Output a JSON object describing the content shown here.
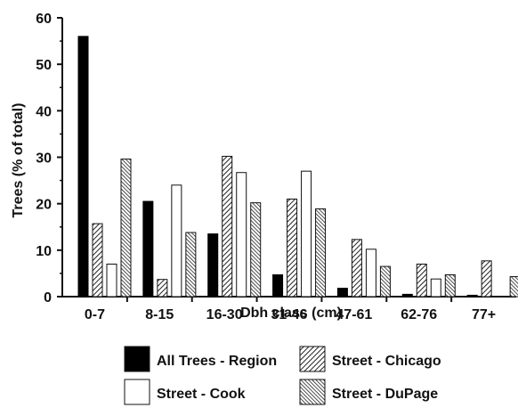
{
  "chart_data": {
    "type": "bar",
    "xlabel": "Dbh class (cm)",
    "ylabel": "Trees (% of total)",
    "ylim": [
      0,
      60
    ],
    "yticks": [
      0,
      10,
      20,
      30,
      40,
      50,
      60
    ],
    "categories": [
      "0-7",
      "8-15",
      "16-30",
      "31-46",
      "47-61",
      "62-76",
      "77+"
    ],
    "series": [
      {
        "name": "All Trees - Region",
        "values": [
          56,
          20.5,
          13.5,
          4.7,
          1.8,
          0.5,
          0.3
        ]
      },
      {
        "name": "Street - Chicago",
        "values": [
          15.7,
          3.7,
          30.2,
          21.0,
          12.3,
          7.0,
          7.7
        ]
      },
      {
        "name": "Street - Cook",
        "values": [
          7.0,
          24.0,
          26.7,
          27.0,
          10.2,
          3.8,
          0
        ]
      },
      {
        "name": "Street - DuPage",
        "values": [
          29.6,
          13.8,
          20.2,
          18.9,
          6.5,
          4.7,
          4.3
        ]
      }
    ],
    "grid": false,
    "legend_position": "bottom"
  }
}
